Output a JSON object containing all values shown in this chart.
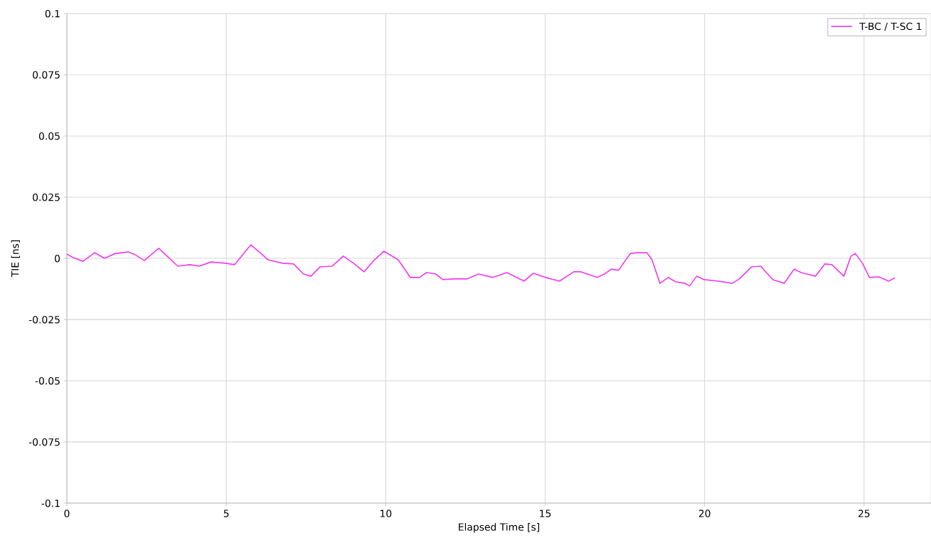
{
  "chart_data": {
    "type": "line",
    "xlabel": "Elapsed Time [s]",
    "ylabel": "TIE [ns]",
    "xlim": [
      0,
      27.1
    ],
    "xticks": [
      0,
      5,
      10,
      15,
      20,
      25
    ],
    "ylim": [
      -0.1,
      0.1
    ],
    "yticks": [
      -0.1,
      -0.075,
      -0.05,
      -0.025,
      0,
      0.025,
      0.05,
      0.075,
      0.1
    ],
    "grid": true,
    "legend": "top right",
    "marker": "none",
    "line_style": "solid",
    "series": [
      {
        "name": "T-BC / T-SC 1",
        "color": "#f03cf0",
        "x": [
          0,
          0.2,
          0.51,
          0.87,
          1.18,
          1.52,
          1.92,
          2.14,
          2.43,
          2.88,
          3.19,
          3.48,
          3.86,
          4.15,
          4.53,
          4.97,
          5.26,
          5.77,
          6.09,
          6.31,
          6.76,
          7.11,
          7.42,
          7.65,
          7.94,
          8.32,
          8.67,
          8.99,
          9.32,
          9.65,
          9.94,
          10.39,
          10.77,
          11.06,
          11.28,
          11.57,
          11.79,
          12.17,
          12.55,
          12.91,
          13.36,
          13.8,
          14.34,
          14.63,
          15.01,
          15.45,
          15.9,
          16.12,
          16.63,
          16.86,
          17.08,
          17.3,
          17.53,
          17.68,
          17.9,
          18.19,
          18.35,
          18.6,
          18.86,
          19.09,
          19.38,
          19.53,
          19.75,
          19.98,
          20.42,
          20.87,
          21.09,
          21.47,
          21.76,
          21.98,
          22.14,
          22.5,
          22.81,
          23.03,
          23.48,
          23.77,
          23.99,
          24.37,
          24.59,
          24.73,
          24.95,
          25.17,
          25.48,
          25.77,
          25.95
        ],
        "values": [
          0.0017,
          0.0003,
          -0.0012,
          0.0023,
          0,
          0.002,
          0.0026,
          0.0015,
          -0.0009,
          0.0041,
          0.0003,
          -0.0032,
          -0.0026,
          -0.0032,
          -0.0015,
          -0.002,
          -0.0026,
          0.0055,
          0.002,
          -0.0006,
          -0.002,
          -0.0023,
          -0.0064,
          -0.0073,
          -0.0035,
          -0.0032,
          0.0009,
          -0.002,
          -0.0055,
          -0.0006,
          0.0029,
          -0.0006,
          -0.0078,
          -0.0078,
          -0.0058,
          -0.0064,
          -0.0087,
          -0.0084,
          -0.0084,
          -0.0064,
          -0.0078,
          -0.0058,
          -0.0093,
          -0.0061,
          -0.0078,
          -0.0093,
          -0.0055,
          -0.0055,
          -0.0078,
          -0.0064,
          -0.0044,
          -0.0049,
          -0.0006,
          0.002,
          0.0023,
          0.0023,
          -0.0006,
          -0.0102,
          -0.0078,
          -0.0096,
          -0.0102,
          -0.0113,
          -0.0073,
          -0.0087,
          -0.0093,
          -0.0102,
          -0.0084,
          -0.0035,
          -0.0032,
          -0.0064,
          -0.0087,
          -0.0102,
          -0.0044,
          -0.0058,
          -0.0073,
          -0.0023,
          -0.0026,
          -0.0073,
          0.0009,
          0.002,
          -0.002,
          -0.0078,
          -0.0076,
          -0.0093,
          -0.0081
        ]
      }
    ]
  }
}
